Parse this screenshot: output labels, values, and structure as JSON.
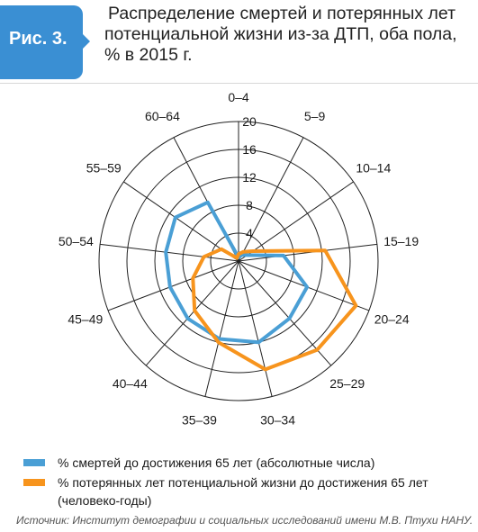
{
  "figure_label": "Рис. 3.",
  "title_lines": [
    "Распределение смертей и потерянных лет",
    "потенциальной жизни из-за ДТП, оба пола,",
    "% в 2015 г."
  ],
  "source": "Источник: Институт демографии и социальных исследований имени М.В. Птухи НАНУ.",
  "colors": {
    "accent": "#3a8fd3",
    "deaths": "#4a9fd5",
    "ypll": "#f7941d",
    "grid": "#222222"
  },
  "chart_data": {
    "type": "radar",
    "categories": [
      "0–4",
      "5–9",
      "10–14",
      "15–19",
      "20–24",
      "25–29",
      "30–34",
      "35–39",
      "40–44",
      "45–49",
      "50–54",
      "55–59",
      "60–64"
    ],
    "r_ticks": [
      4,
      8,
      12,
      16,
      20
    ],
    "r_max": 20,
    "grid": true,
    "legend_placement": "bottom",
    "series": [
      {
        "name": "% смертей до достижения 65 лет (абсолютные числа)",
        "values": [
          0.5,
          1,
          1.5,
          6.5,
          10.5,
          11,
          12,
          11.5,
          11,
          10.5,
          10.5,
          11,
          9.5
        ],
        "color": "#4a9fd5"
      },
      {
        "name": "% потерянных лет потенциальной жизни до достижения 65 лет",
        "name_line2": "(человеко-годы)",
        "values": [
          1,
          1.5,
          2.5,
          12.5,
          18,
          17,
          16,
          12,
          9.5,
          7,
          5,
          3,
          0.5
        ],
        "color": "#f7941d"
      }
    ]
  }
}
